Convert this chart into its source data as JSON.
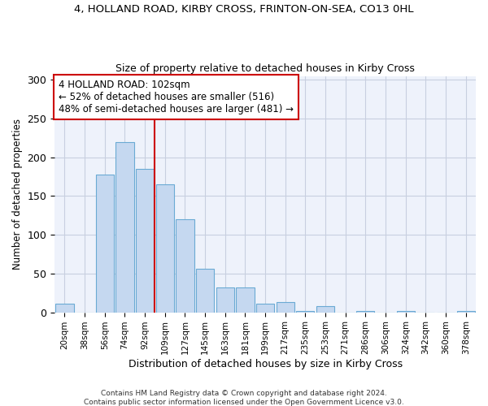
{
  "title1": "4, HOLLAND ROAD, KIRBY CROSS, FRINTON-ON-SEA, CO13 0HL",
  "title2": "Size of property relative to detached houses in Kirby Cross",
  "xlabel": "Distribution of detached houses by size in Kirby Cross",
  "ylabel": "Number of detached properties",
  "categories": [
    "20sqm",
    "38sqm",
    "56sqm",
    "74sqm",
    "92sqm",
    "109sqm",
    "127sqm",
    "145sqm",
    "163sqm",
    "181sqm",
    "199sqm",
    "217sqm",
    "235sqm",
    "253sqm",
    "271sqm",
    "286sqm",
    "306sqm",
    "324sqm",
    "342sqm",
    "360sqm",
    "378sqm"
  ],
  "values": [
    11,
    0,
    178,
    220,
    185,
    165,
    120,
    56,
    32,
    32,
    11,
    13,
    2,
    8,
    0,
    2,
    0,
    2,
    0,
    0,
    2
  ],
  "bar_color": "#c5d8f0",
  "bar_edge_color": "#6aaad4",
  "vline_color": "#cc0000",
  "vline_x_index": 4.5,
  "annotation_text": "4 HOLLAND ROAD: 102sqm\n← 52% of detached houses are smaller (516)\n48% of semi-detached houses are larger (481) →",
  "annotation_box_color": "#ffffff",
  "annotation_box_edge": "#cc0000",
  "footer": "Contains HM Land Registry data © Crown copyright and database right 2024.\nContains public sector information licensed under the Open Government Licence v3.0.",
  "ylim": [
    0,
    305
  ],
  "bg_color": "#eef2fb",
  "grid_color": "#c8cfe0"
}
